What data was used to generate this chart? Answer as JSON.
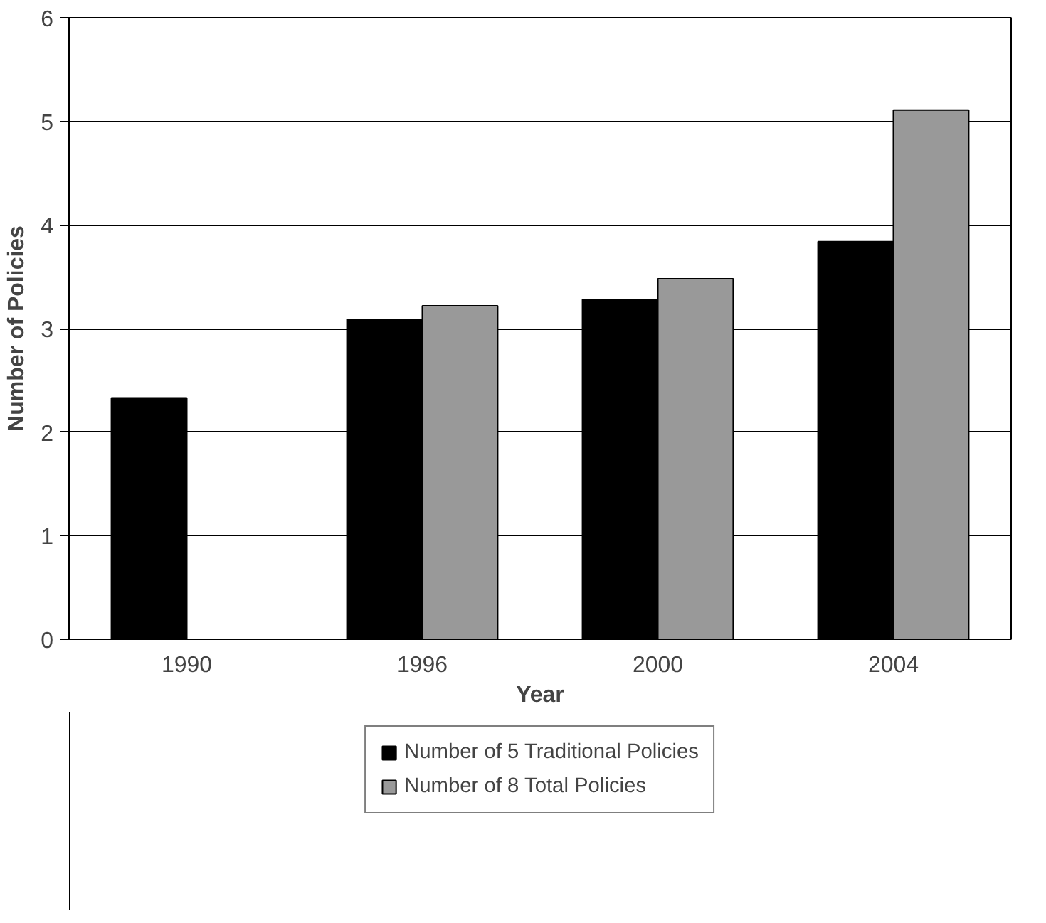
{
  "chart_data": {
    "type": "bar",
    "xlabel": "Year",
    "ylabel": "Number of Policies",
    "categories": [
      "1990",
      "1996",
      "2000",
      "2004"
    ],
    "series": [
      {
        "name": "Number of 5 Traditional Policies",
        "color": "#000000",
        "values": [
          2.33,
          3.09,
          3.28,
          3.84
        ]
      },
      {
        "name": "Number of 8 Total Policies",
        "color": "#999999",
        "values": [
          null,
          3.22,
          3.48,
          5.11
        ]
      }
    ],
    "ylim": [
      0,
      6
    ],
    "yticks": [
      0,
      1,
      2,
      3,
      4,
      5,
      6
    ],
    "grid": "y",
    "legend": "bottom"
  }
}
